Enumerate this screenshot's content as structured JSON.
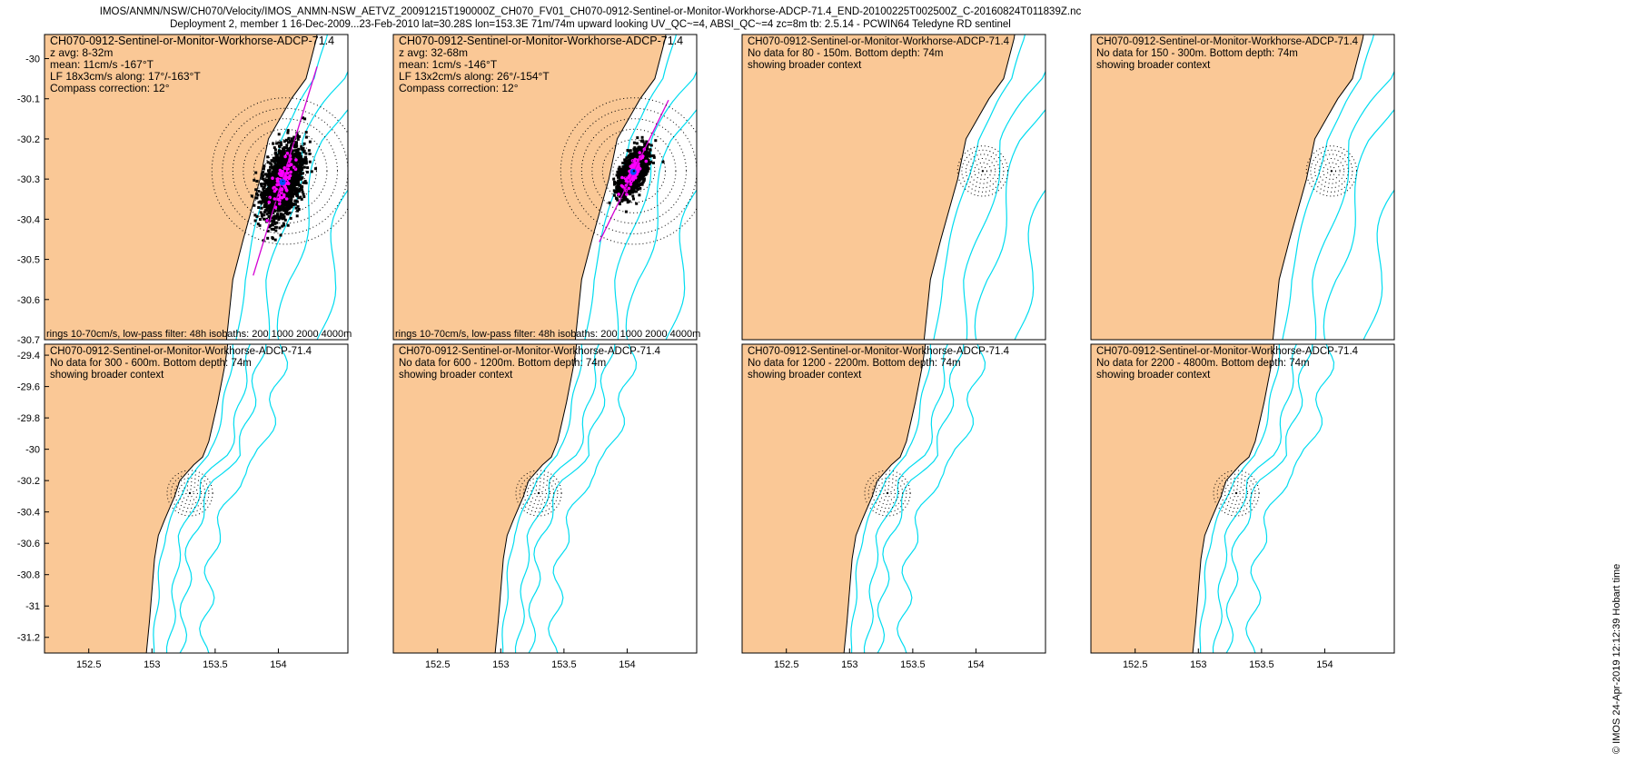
{
  "title": {
    "line1": "IMOS/ANMN/NSW/CH070/Velocity/IMOS_ANMN-NSW_AETVZ_20091215T190000Z_CH070_FV01_CH070-0912-Sentinel-or-Monitor-Workhorse-ADCP-71.4_END-20100225T002500Z_C-20160824T011839Z.nc",
    "line2": "Deployment 2, member 1 16-Dec-2009...23-Feb-2010 lat=30.28S lon=153.3E 71m/74m upward looking UV_QC~=4, ABSI_QC~=4 zc=8m tb: 2.5.14 - PCWIN64 Teledyne RD sentinel"
  },
  "footer": "© IMOS 24-Apr-2019 12:12:39 Hobart time",
  "colors": {
    "land": "#fac896",
    "isobath": "#00dcf0",
    "scatter": "#000000",
    "lowpass": "#ff00ff",
    "major_axis": "#d400d4",
    "mean_dot": "#0050ff"
  },
  "chart_data": [
    {
      "type": "scatter",
      "lines": [
        "CH070-0912-Sentinel-or-Monitor-Workhorse-ADCP-71.4",
        "z avg: 8-32m",
        "mean: 11cm/s -167°T",
        "LF 18x3cm/s along: 17°/-163°T",
        "Compass correction: 12°"
      ],
      "yticks": [
        "-30",
        "-30.1",
        "-30.2",
        "-30.3",
        "-30.4",
        "-30.5",
        "-30.6",
        "-30.7"
      ],
      "xlim": [
        152.15,
        153.6
      ],
      "ylim": [
        -30.7,
        -29.94
      ],
      "mooring": [
        153.3,
        -30.28
      ],
      "rings": [
        0.05,
        0.1,
        0.15,
        0.2,
        0.25,
        0.3,
        0.35
      ],
      "mean_vel_cm_s": 11,
      "mean_dir_degT": -167,
      "major_axis_dir_degT": 17,
      "lf_major_cm_s": 18,
      "lf_minor_cm_s": 3,
      "scatter_along_sd_cm_s": 18,
      "scatter_cross_sd_cm_s": 8,
      "caption": "rings 10-70cm/s, low-pass filter: 48h isobaths: 200 1000 2000 4000m"
    },
    {
      "type": "scatter",
      "lines": [
        "CH070-0912-Sentinel-or-Monitor-Workhorse-ADCP-71.4",
        "z avg: 32-68m",
        "mean: 1cm/s -146°T",
        "LF 13x2cm/s along: 26°/-154°T",
        "Compass correction: 12°"
      ],
      "xlim": [
        152.15,
        153.6
      ],
      "ylim": [
        -30.7,
        -29.94
      ],
      "mooring": [
        153.3,
        -30.28
      ],
      "rings": [
        0.05,
        0.1,
        0.15,
        0.2,
        0.25,
        0.3,
        0.35
      ],
      "mean_vel_cm_s": 1,
      "mean_dir_degT": -146,
      "major_axis_dir_degT": 26,
      "lf_major_cm_s": 13,
      "lf_minor_cm_s": 2,
      "scatter_along_sd_cm_s": 11,
      "scatter_cross_sd_cm_s": 5,
      "caption": "rings 10-70cm/s, low-pass filter: 48h isobaths: 200 1000 2000 4000m"
    },
    {
      "type": "scatter",
      "lines": [
        "CH070-0912-Sentinel-or-Monitor-Workhorse-ADCP-71.4",
        "No data for 80 - 150m. Bottom depth: 74m",
        "showing broader context"
      ],
      "xlim": [
        152.15,
        153.6
      ],
      "ylim": [
        -30.7,
        -29.94
      ],
      "mooring": [
        153.3,
        -30.28
      ],
      "rings": [
        0.02,
        0.04,
        0.06,
        0.08,
        0.1,
        0.12
      ]
    },
    {
      "type": "scatter",
      "lines": [
        "CH070-0912-Sentinel-or-Monitor-Workhorse-ADCP-71.4",
        "No data for 150 - 300m. Bottom depth: 74m",
        "showing broader context"
      ],
      "xlim": [
        152.15,
        153.6
      ],
      "ylim": [
        -30.7,
        -29.94
      ],
      "mooring": [
        153.3,
        -30.28
      ],
      "rings": [
        0.02,
        0.04,
        0.06,
        0.08,
        0.1,
        0.12
      ]
    },
    {
      "type": "scatter",
      "lines": [
        "CH070-0912-Sentinel-or-Monitor-Workhorse-ADCP-71.4",
        "No data for 300 - 600m. Bottom depth: 74m",
        "showing broader context"
      ],
      "yticks": [
        "-29.4",
        "-29.6",
        "-29.8",
        "-30",
        "-30.2",
        "-30.4",
        "-30.6",
        "-30.8",
        "-31",
        "-31.2"
      ],
      "xticks": [
        "152.5",
        "153",
        "153.5",
        "154"
      ],
      "xlim": [
        152.15,
        154.55
      ],
      "ylim": [
        -31.3,
        -29.33
      ],
      "mooring": [
        153.3,
        -30.28
      ],
      "rings": [
        0.03,
        0.06,
        0.09,
        0.12,
        0.15,
        0.18
      ]
    },
    {
      "type": "scatter",
      "lines": [
        "CH070-0912-Sentinel-or-Monitor-Workhorse-ADCP-71.4",
        "No data for 600 - 1200m. Bottom depth: 74m",
        "showing broader context"
      ],
      "xticks": [
        "152.5",
        "153",
        "153.5",
        "154"
      ],
      "xlim": [
        152.15,
        154.55
      ],
      "ylim": [
        -31.3,
        -29.33
      ],
      "mooring": [
        153.3,
        -30.28
      ],
      "rings": [
        0.03,
        0.06,
        0.09,
        0.12,
        0.15,
        0.18
      ]
    },
    {
      "type": "scatter",
      "lines": [
        "CH070-0912-Sentinel-or-Monitor-Workhorse-ADCP-71.4",
        "No data for 1200 - 2200m. Bottom depth: 74m",
        "showing broader context"
      ],
      "xticks": [
        "152.5",
        "153",
        "153.5",
        "154"
      ],
      "xlim": [
        152.15,
        154.55
      ],
      "ylim": [
        -31.3,
        -29.33
      ],
      "mooring": [
        153.3,
        -30.28
      ],
      "rings": [
        0.03,
        0.06,
        0.09,
        0.12,
        0.15,
        0.18
      ]
    },
    {
      "type": "scatter",
      "lines": [
        "CH070-0912-Sentinel-or-Monitor-Workhorse-ADCP-71.4",
        "No data for 2200 - 4800m. Bottom depth: 74m",
        "showing broader context"
      ],
      "xticks": [
        "152.5",
        "153",
        "153.5",
        "154"
      ],
      "xlim": [
        152.15,
        154.55
      ],
      "ylim": [
        -31.3,
        -29.33
      ],
      "mooring": [
        153.3,
        -30.28
      ],
      "rings": [
        0.03,
        0.06,
        0.09,
        0.12,
        0.15,
        0.18
      ]
    }
  ]
}
